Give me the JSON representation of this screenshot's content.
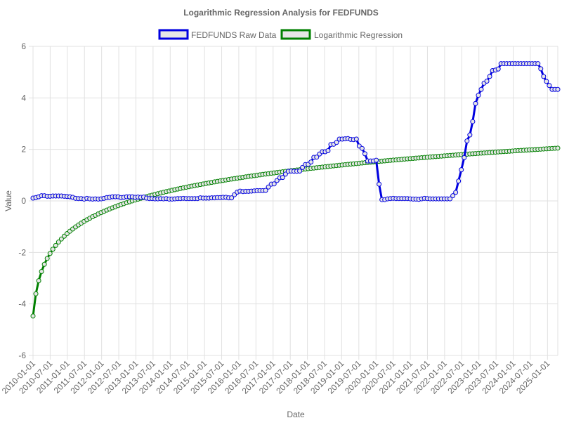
{
  "chart_data": {
    "type": "line",
    "title": "Logarithmic Regression Analysis for FEDFUNDS",
    "xlabel": "Date",
    "ylabel": "Value",
    "ylim": [
      -6,
      6
    ],
    "y_ticks": [
      -6,
      -4,
      -2,
      0,
      2,
      4,
      6
    ],
    "x_tick_labels": [
      "2010-01-01",
      "2010-07-01",
      "2011-01-01",
      "2011-07-01",
      "2012-01-01",
      "2012-07-01",
      "2013-01-01",
      "2013-07-01",
      "2014-01-01",
      "2014-07-01",
      "2015-01-01",
      "2015-07-01",
      "2016-01-01",
      "2016-07-01",
      "2017-01-01",
      "2017-07-01",
      "2018-01-01",
      "2018-07-01",
      "2019-01-01",
      "2019-07-01",
      "2020-01-01",
      "2020-07-01",
      "2021-01-01",
      "2021-07-01",
      "2022-01-01",
      "2022-07-01",
      "2023-01-01",
      "2023-07-01",
      "2024-01-01",
      "2024-07-01",
      "2025-01-01"
    ],
    "grid": true,
    "legend_position": "top",
    "series": [
      {
        "name": "FEDFUNDS Raw Data",
        "color": "#0000e0",
        "values": [
          0.11,
          0.13,
          0.16,
          0.2,
          0.2,
          0.18,
          0.18,
          0.19,
          0.19,
          0.19,
          0.19,
          0.18,
          0.17,
          0.16,
          0.14,
          0.1,
          0.09,
          0.09,
          0.07,
          0.1,
          0.08,
          0.07,
          0.08,
          0.07,
          0.08,
          0.1,
          0.13,
          0.14,
          0.16,
          0.16,
          0.16,
          0.13,
          0.14,
          0.16,
          0.16,
          0.16,
          0.14,
          0.15,
          0.14,
          0.15,
          0.11,
          0.09,
          0.09,
          0.08,
          0.08,
          0.09,
          0.08,
          0.09,
          0.07,
          0.07,
          0.08,
          0.09,
          0.09,
          0.1,
          0.09,
          0.09,
          0.09,
          0.09,
          0.09,
          0.12,
          0.11,
          0.11,
          0.11,
          0.12,
          0.12,
          0.13,
          0.13,
          0.14,
          0.14,
          0.12,
          0.12,
          0.24,
          0.34,
          0.38,
          0.36,
          0.37,
          0.37,
          0.38,
          0.39,
          0.4,
          0.4,
          0.4,
          0.41,
          0.54,
          0.65,
          0.66,
          0.79,
          0.9,
          0.91,
          1.04,
          1.15,
          1.16,
          1.15,
          1.15,
          1.16,
          1.3,
          1.41,
          1.42,
          1.51,
          1.69,
          1.7,
          1.82,
          1.91,
          1.91,
          1.95,
          2.19,
          2.2,
          2.27,
          2.4,
          2.4,
          2.41,
          2.42,
          2.39,
          2.38,
          2.4,
          2.13,
          2.04,
          1.83,
          1.55,
          1.55,
          1.55,
          1.58,
          0.65,
          0.05,
          0.05,
          0.08,
          0.09,
          0.1,
          0.09,
          0.09,
          0.09,
          0.09,
          0.09,
          0.08,
          0.07,
          0.07,
          0.06,
          0.08,
          0.1,
          0.09,
          0.08,
          0.08,
          0.08,
          0.08,
          0.08,
          0.08,
          0.08,
          0.08,
          0.2,
          0.33,
          0.77,
          1.21,
          1.68,
          2.33,
          2.56,
          3.08,
          3.78,
          4.1,
          4.33,
          4.57,
          4.65,
          4.83,
          5.06,
          5.08,
          5.12,
          5.33,
          5.33,
          5.33,
          5.33,
          5.33,
          5.33,
          5.33,
          5.33,
          5.33,
          5.33,
          5.33,
          5.33,
          5.33,
          5.33,
          5.13,
          4.83,
          4.64,
          4.48,
          4.33,
          4.33,
          4.33
        ]
      },
      {
        "name": "Logarithmic Regression",
        "color": "#008000",
        "start": -4.47,
        "end": 2.05
      }
    ]
  }
}
